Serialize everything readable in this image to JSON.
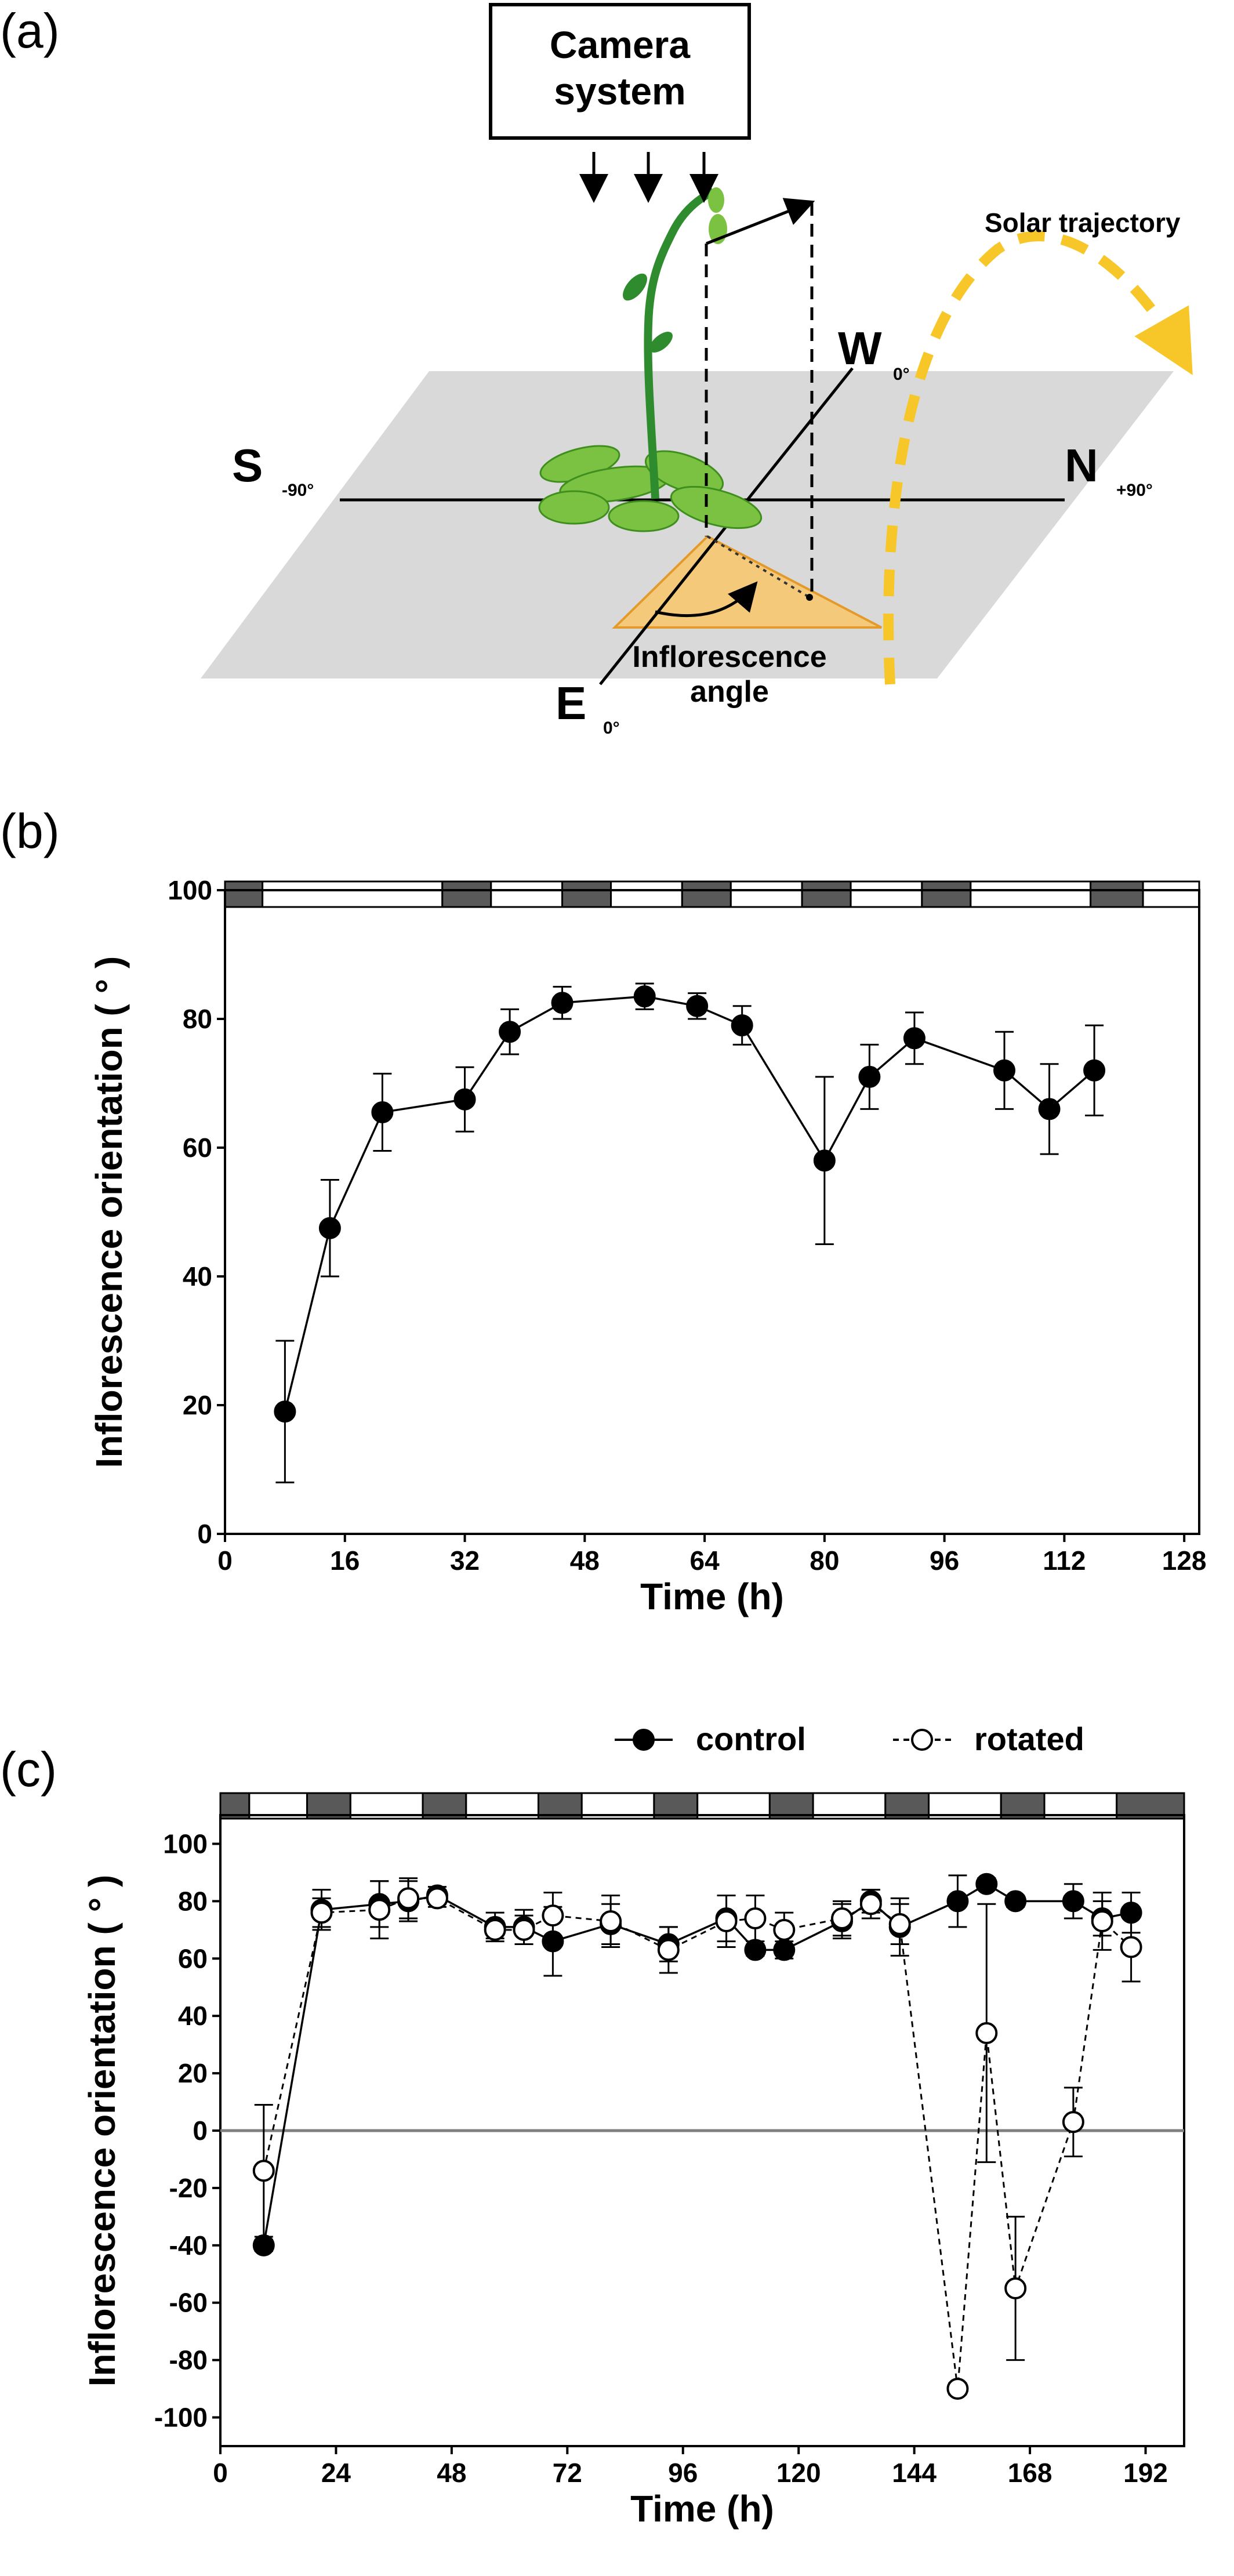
{
  "panels": {
    "a": "(a)",
    "b": "(b)",
    "c": "(c)"
  },
  "diagram": {
    "camera_line1": "Camera",
    "camera_line2": "system",
    "solar_label": "Solar trajectory",
    "south": "S",
    "south_deg": "-90°",
    "north": "N",
    "north_deg": "+90°",
    "west": "W",
    "west_deg": "0°",
    "east": "E",
    "east_deg": "0°",
    "angle_line1": "Inflorescence",
    "angle_line2": "angle",
    "colors": {
      "plane": "#d9d9d9",
      "plant_stem": "#2e8b2e",
      "plant_leaf": "#7cc242",
      "angle_fill": "#f5c97a",
      "solar": "#f7c72a"
    }
  },
  "chart_data": [
    {
      "type": "scatter",
      "panel": "b",
      "xlabel": "Time (h)",
      "ylabel": "Inflorescence orientation ( ° )",
      "xlim": [
        0,
        130
      ],
      "ylim": [
        0,
        100
      ],
      "xticks": [
        0,
        16,
        32,
        48,
        64,
        80,
        96,
        112,
        128
      ],
      "yticks": [
        0,
        20,
        40,
        60,
        80,
        100
      ],
      "light_bar": [
        {
          "start": 0,
          "end": 5,
          "phase": "dark"
        },
        {
          "start": 5,
          "end": 29,
          "phase": "light"
        },
        {
          "start": 29,
          "end": 35.5,
          "phase": "dark"
        },
        {
          "start": 35.5,
          "end": 45,
          "phase": "light"
        },
        {
          "start": 45,
          "end": 51.5,
          "phase": "dark"
        },
        {
          "start": 51.5,
          "end": 61,
          "phase": "light"
        },
        {
          "start": 61,
          "end": 67.5,
          "phase": "dark"
        },
        {
          "start": 67.5,
          "end": 77,
          "phase": "light"
        },
        {
          "start": 77,
          "end": 83.5,
          "phase": "dark"
        },
        {
          "start": 83.5,
          "end": 93,
          "phase": "light"
        },
        {
          "start": 93,
          "end": 99.5,
          "phase": "dark"
        },
        {
          "start": 99.5,
          "end": 115.5,
          "phase": "light"
        },
        {
          "start": 115.5,
          "end": 122.5,
          "phase": "dark"
        },
        {
          "start": 122.5,
          "end": 130,
          "phase": "light"
        }
      ],
      "series": [
        {
          "style": "filled-solid",
          "x": [
            8,
            14,
            21,
            32,
            38,
            45,
            56,
            63,
            69,
            80,
            86,
            92,
            104,
            110,
            116
          ],
          "y": [
            19,
            47.5,
            65.5,
            67.5,
            78,
            82.5,
            83.5,
            82,
            79,
            58,
            71,
            77,
            72,
            66,
            72
          ],
          "err": [
            11,
            7.5,
            6,
            5,
            3.5,
            2.5,
            2,
            2,
            3,
            13,
            5,
            4,
            6,
            7,
            7
          ]
        }
      ]
    },
    {
      "type": "scatter",
      "panel": "c",
      "xlabel": "Time  (h)",
      "ylabel": "Inflorescence orientation ( ° )",
      "xlim": [
        0,
        200
      ],
      "ylim": [
        -110,
        110
      ],
      "xticks": [
        0,
        24,
        48,
        72,
        96,
        120,
        144,
        168,
        192
      ],
      "yticks": [
        -100,
        -80,
        -60,
        -40,
        -20,
        0,
        20,
        40,
        60,
        80,
        100
      ],
      "light_bar": [
        {
          "start": 0,
          "end": 6,
          "phase": "dark"
        },
        {
          "start": 6,
          "end": 18,
          "phase": "light"
        },
        {
          "start": 18,
          "end": 27,
          "phase": "dark"
        },
        {
          "start": 27,
          "end": 42,
          "phase": "light"
        },
        {
          "start": 42,
          "end": 51,
          "phase": "dark"
        },
        {
          "start": 51,
          "end": 66,
          "phase": "light"
        },
        {
          "start": 66,
          "end": 75,
          "phase": "dark"
        },
        {
          "start": 75,
          "end": 90,
          "phase": "light"
        },
        {
          "start": 90,
          "end": 99,
          "phase": "dark"
        },
        {
          "start": 99,
          "end": 114,
          "phase": "light"
        },
        {
          "start": 114,
          "end": 123,
          "phase": "dark"
        },
        {
          "start": 123,
          "end": 138,
          "phase": "light"
        },
        {
          "start": 138,
          "end": 147,
          "phase": "dark"
        },
        {
          "start": 147,
          "end": 162,
          "phase": "light"
        },
        {
          "start": 162,
          "end": 171,
          "phase": "dark"
        },
        {
          "start": 171,
          "end": 186,
          "phase": "light"
        },
        {
          "start": 186,
          "end": 200,
          "phase": "dark"
        }
      ],
      "series": [
        {
          "name": "control",
          "style": "filled-solid",
          "x": [
            9,
            21,
            33,
            39,
            45,
            57,
            63,
            69,
            81,
            93,
            105,
            111,
            117,
            129,
            135,
            141,
            153,
            159,
            165,
            177,
            183,
            189
          ],
          "y": [
            -40,
            77,
            79,
            80,
            82,
            71,
            71,
            66,
            72,
            65,
            74,
            63,
            63,
            73,
            80,
            71,
            80,
            86,
            80,
            80,
            74,
            76
          ],
          "err": [
            2,
            7,
            8,
            7,
            3,
            5,
            6,
            12,
            7,
            6,
            8,
            2,
            3,
            6,
            4,
            10,
            9,
            2,
            2,
            6,
            6,
            7
          ]
        },
        {
          "name": "rotated",
          "style": "open-dashed",
          "x": [
            9,
            21,
            33,
            39,
            45,
            57,
            63,
            69,
            81,
            93,
            105,
            111,
            117,
            129,
            135,
            141,
            153,
            159,
            165,
            177,
            183,
            189
          ],
          "y": [
            -14,
            76,
            77,
            81,
            81,
            70,
            70,
            75,
            73,
            63,
            73,
            74,
            70,
            74,
            79,
            72,
            -90,
            34,
            -55,
            3,
            73,
            64
          ],
          "err": [
            23,
            5,
            10,
            7,
            3,
            3,
            5,
            8,
            9,
            8,
            9,
            8,
            6,
            6,
            5,
            7,
            2,
            45,
            25,
            12,
            10,
            12
          ]
        }
      ]
    }
  ]
}
